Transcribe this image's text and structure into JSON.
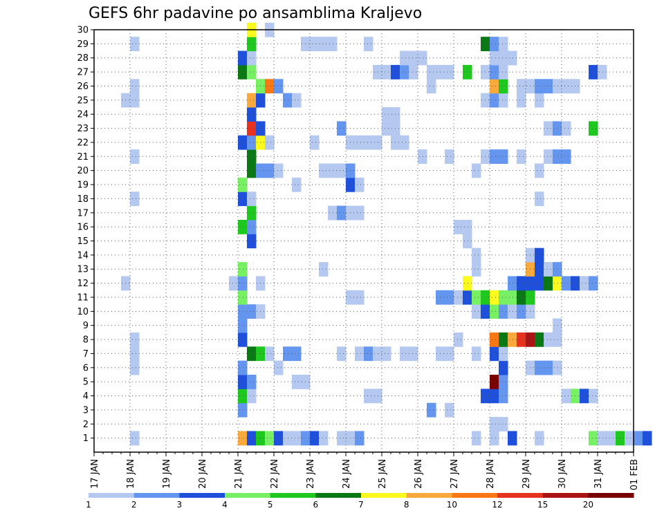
{
  "chart_data": {
    "type": "heatmap",
    "title": "GEFS 6hr padavine po ansamblima Kraljevo",
    "x_ticks": [
      "17 JAN",
      "18 JAN",
      "19 JAN",
      "20 JAN",
      "21 JAN",
      "22 JAN",
      "23 JAN",
      "24 JAN",
      "25 JAN",
      "26 JAN",
      "27 JAN",
      "28 JAN",
      "29 JAN",
      "30 JAN",
      "31 JAN",
      "01 FEB"
    ],
    "y_ticks": [
      "1",
      "2",
      "3",
      "4",
      "5",
      "6",
      "7",
      "8",
      "9",
      "10",
      "11",
      "12",
      "13",
      "14",
      "15",
      "16",
      "17",
      "18",
      "19",
      "20",
      "21",
      "22",
      "23",
      "24",
      "25",
      "26",
      "27",
      "28",
      "29",
      "30"
    ],
    "xlim": [
      "17 JAN",
      "01 FEB"
    ],
    "ylim": [
      0,
      30
    ],
    "x_unit": "day (6-hour steps)",
    "grid": true,
    "legend": {
      "placement": "bottom",
      "labels": [
        "1",
        "2",
        "3",
        "4",
        "5",
        "6",
        "7",
        "8",
        "10",
        "12",
        "15",
        "20"
      ],
      "colors": [
        "#b4c8f0",
        "#6496f0",
        "#1e50dc",
        "#78f064",
        "#1ec81e",
        "#0a7814",
        "#fafa1e",
        "#faaa3c",
        "#fa7814",
        "#e6321e",
        "#aa1414",
        "#780000"
      ]
    },
    "cells": [
      [
        4.0,
        1,
        7
      ],
      [
        4.25,
        1,
        2
      ],
      [
        4.5,
        1,
        4
      ],
      [
        4.75,
        1,
        3
      ],
      [
        5.0,
        1,
        2
      ],
      [
        5.25,
        1,
        0
      ],
      [
        5.5,
        1,
        0
      ],
      [
        5.75,
        1,
        1
      ],
      [
        6.0,
        1,
        2
      ],
      [
        6.25,
        1,
        0
      ],
      [
        6.75,
        1,
        0
      ],
      [
        7.0,
        1,
        0
      ],
      [
        7.25,
        1,
        1
      ],
      [
        10.5,
        1,
        0
      ],
      [
        11.0,
        1,
        0
      ],
      [
        11.5,
        1,
        2
      ],
      [
        12.25,
        1,
        0
      ],
      [
        13.75,
        1,
        3
      ],
      [
        14.0,
        1,
        0
      ],
      [
        14.25,
        1,
        0
      ],
      [
        14.5,
        1,
        4
      ],
      [
        14.75,
        1,
        0
      ],
      [
        15.0,
        1,
        1
      ],
      [
        15.25,
        1,
        2
      ],
      [
        1.0,
        1,
        0
      ],
      [
        11.0,
        2,
        0
      ],
      [
        11.25,
        2,
        0
      ],
      [
        4.0,
        3,
        1
      ],
      [
        9.25,
        3,
        1
      ],
      [
        9.75,
        3,
        0
      ],
      [
        4.0,
        4,
        4
      ],
      [
        4.25,
        4,
        0
      ],
      [
        7.5,
        4,
        0
      ],
      [
        7.75,
        4,
        0
      ],
      [
        10.75,
        4,
        2
      ],
      [
        11.0,
        4,
        2
      ],
      [
        11.25,
        4,
        1
      ],
      [
        13.0,
        4,
        0
      ],
      [
        13.25,
        4,
        3
      ],
      [
        13.5,
        4,
        2
      ],
      [
        13.75,
        4,
        0
      ],
      [
        4.0,
        5,
        2
      ],
      [
        4.25,
        5,
        1
      ],
      [
        5.5,
        5,
        0
      ],
      [
        5.75,
        5,
        0
      ],
      [
        11.0,
        5,
        11
      ],
      [
        11.25,
        5,
        1
      ],
      [
        4.0,
        6,
        1
      ],
      [
        5.0,
        6,
        0
      ],
      [
        11.25,
        6,
        2
      ],
      [
        12.0,
        6,
        0
      ],
      [
        12.25,
        6,
        1
      ],
      [
        12.5,
        6,
        1
      ],
      [
        12.75,
        6,
        0
      ],
      [
        1.0,
        6,
        0
      ],
      [
        4.25,
        7,
        5
      ],
      [
        4.5,
        7,
        4
      ],
      [
        4.75,
        7,
        0
      ],
      [
        5.25,
        7,
        1
      ],
      [
        5.5,
        7,
        1
      ],
      [
        6.75,
        7,
        0
      ],
      [
        7.25,
        7,
        0
      ],
      [
        7.5,
        7,
        1
      ],
      [
        7.75,
        7,
        0
      ],
      [
        8.0,
        7,
        0
      ],
      [
        8.5,
        7,
        0
      ],
      [
        8.75,
        7,
        0
      ],
      [
        9.5,
        7,
        0
      ],
      [
        9.75,
        7,
        0
      ],
      [
        10.5,
        7,
        0
      ],
      [
        11.0,
        7,
        2
      ],
      [
        11.25,
        7,
        0
      ],
      [
        1.0,
        7,
        0
      ],
      [
        4.0,
        8,
        2
      ],
      [
        1.0,
        8,
        0
      ],
      [
        10.0,
        8,
        0
      ],
      [
        11.0,
        8,
        8
      ],
      [
        11.25,
        8,
        5
      ],
      [
        11.5,
        8,
        7
      ],
      [
        11.75,
        8,
        9
      ],
      [
        12.0,
        8,
        10
      ],
      [
        12.25,
        8,
        5
      ],
      [
        12.5,
        8,
        0
      ],
      [
        12.75,
        8,
        0
      ],
      [
        4.0,
        9,
        1
      ],
      [
        12.75,
        9,
        0
      ],
      [
        4.0,
        10,
        1
      ],
      [
        4.25,
        10,
        1
      ],
      [
        4.5,
        10,
        0
      ],
      [
        10.5,
        10,
        0
      ],
      [
        10.75,
        10,
        2
      ],
      [
        11.0,
        10,
        3
      ],
      [
        11.25,
        10,
        1
      ],
      [
        11.5,
        10,
        0
      ],
      [
        11.75,
        10,
        1
      ],
      [
        12.0,
        10,
        0
      ],
      [
        4.0,
        11,
        3
      ],
      [
        7.0,
        11,
        0
      ],
      [
        7.25,
        11,
        0
      ],
      [
        9.5,
        11,
        1
      ],
      [
        9.75,
        11,
        1
      ],
      [
        10.0,
        11,
        0
      ],
      [
        10.25,
        11,
        2
      ],
      [
        10.5,
        11,
        3
      ],
      [
        10.75,
        11,
        4
      ],
      [
        11.0,
        11,
        6
      ],
      [
        11.25,
        11,
        3
      ],
      [
        11.5,
        11,
        3
      ],
      [
        11.75,
        11,
        5
      ],
      [
        12.0,
        11,
        4
      ],
      [
        3.75,
        12,
        0
      ],
      [
        4.0,
        12,
        1
      ],
      [
        4.5,
        12,
        0
      ],
      [
        0.75,
        12,
        0
      ],
      [
        10.25,
        12,
        6
      ],
      [
        11.5,
        12,
        1
      ],
      [
        11.75,
        12,
        2
      ],
      [
        12.0,
        12,
        2
      ],
      [
        12.25,
        12,
        2
      ],
      [
        12.5,
        12,
        5
      ],
      [
        12.75,
        12,
        6
      ],
      [
        13.0,
        12,
        1
      ],
      [
        13.25,
        12,
        2
      ],
      [
        13.5,
        12,
        0
      ],
      [
        13.75,
        12,
        1
      ],
      [
        4.0,
        13,
        3
      ],
      [
        6.25,
        13,
        0
      ],
      [
        10.5,
        13,
        0
      ],
      [
        12.0,
        13,
        7
      ],
      [
        12.25,
        13,
        2
      ],
      [
        12.5,
        13,
        0
      ],
      [
        12.75,
        13,
        1
      ],
      [
        10.5,
        14,
        0
      ],
      [
        12.0,
        14,
        0
      ],
      [
        12.25,
        14,
        2
      ],
      [
        4.25,
        15,
        2
      ],
      [
        10.25,
        15,
        0
      ],
      [
        4.0,
        16,
        4
      ],
      [
        4.25,
        16,
        1
      ],
      [
        10.0,
        16,
        0
      ],
      [
        10.25,
        16,
        0
      ],
      [
        4.25,
        17,
        4
      ],
      [
        6.5,
        17,
        0
      ],
      [
        6.75,
        17,
        1
      ],
      [
        7.0,
        17,
        0
      ],
      [
        7.25,
        17,
        0
      ],
      [
        4.0,
        18,
        2
      ],
      [
        4.25,
        18,
        0
      ],
      [
        1.0,
        18,
        0
      ],
      [
        12.25,
        18,
        0
      ],
      [
        4.0,
        19,
        3
      ],
      [
        5.5,
        19,
        0
      ],
      [
        7.0,
        19,
        2
      ],
      [
        7.25,
        19,
        0
      ],
      [
        4.25,
        20,
        5
      ],
      [
        4.5,
        20,
        1
      ],
      [
        4.75,
        20,
        1
      ],
      [
        5.0,
        20,
        0
      ],
      [
        6.25,
        20,
        0
      ],
      [
        6.5,
        20,
        0
      ],
      [
        6.75,
        20,
        0
      ],
      [
        7.0,
        20,
        1
      ],
      [
        10.5,
        20,
        0
      ],
      [
        12.25,
        20,
        0
      ],
      [
        4.25,
        21,
        5
      ],
      [
        1.0,
        21,
        0
      ],
      [
        9.0,
        21,
        0
      ],
      [
        9.75,
        21,
        0
      ],
      [
        10.75,
        21,
        0
      ],
      [
        11.0,
        21,
        1
      ],
      [
        11.25,
        21,
        1
      ],
      [
        11.75,
        21,
        0
      ],
      [
        12.5,
        21,
        0
      ],
      [
        12.75,
        21,
        1
      ],
      [
        13.0,
        21,
        1
      ],
      [
        4.0,
        22,
        2
      ],
      [
        4.25,
        22,
        1
      ],
      [
        4.5,
        22,
        6
      ],
      [
        4.75,
        22,
        0
      ],
      [
        6.0,
        22,
        0
      ],
      [
        7.0,
        22,
        0
      ],
      [
        7.25,
        22,
        0
      ],
      [
        7.5,
        22,
        0
      ],
      [
        7.75,
        22,
        0
      ],
      [
        8.25,
        22,
        0
      ],
      [
        8.5,
        22,
        0
      ],
      [
        4.25,
        23,
        9
      ],
      [
        4.5,
        23,
        2
      ],
      [
        6.75,
        23,
        1
      ],
      [
        8.0,
        23,
        0
      ],
      [
        8.25,
        23,
        0
      ],
      [
        12.5,
        23,
        0
      ],
      [
        12.75,
        23,
        1
      ],
      [
        13.0,
        23,
        0
      ],
      [
        13.75,
        23,
        4
      ],
      [
        4.25,
        24,
        2
      ],
      [
        8.0,
        24,
        0
      ],
      [
        8.25,
        24,
        0
      ],
      [
        4.25,
        25,
        7
      ],
      [
        4.5,
        25,
        2
      ],
      [
        0.75,
        25,
        0
      ],
      [
        1.0,
        25,
        0
      ],
      [
        5.25,
        25,
        1
      ],
      [
        5.5,
        25,
        0
      ],
      [
        10.75,
        25,
        0
      ],
      [
        11.0,
        25,
        1
      ],
      [
        11.25,
        25,
        0
      ],
      [
        11.75,
        25,
        0
      ],
      [
        12.25,
        25,
        0
      ],
      [
        4.5,
        26,
        3
      ],
      [
        4.75,
        26,
        8
      ],
      [
        5.0,
        26,
        1
      ],
      [
        1.0,
        26,
        0
      ],
      [
        9.25,
        26,
        0
      ],
      [
        11.0,
        26,
        7
      ],
      [
        11.25,
        26,
        4
      ],
      [
        11.75,
        26,
        0
      ],
      [
        12.0,
        26,
        0
      ],
      [
        12.25,
        26,
        1
      ],
      [
        12.5,
        26,
        1
      ],
      [
        12.75,
        26,
        0
      ],
      [
        13.0,
        26,
        0
      ],
      [
        13.25,
        26,
        0
      ],
      [
        4.0,
        27,
        5
      ],
      [
        4.25,
        27,
        3
      ],
      [
        7.75,
        27,
        0
      ],
      [
        8.0,
        27,
        0
      ],
      [
        8.25,
        27,
        2
      ],
      [
        8.5,
        27,
        1
      ],
      [
        8.75,
        27,
        0
      ],
      [
        9.25,
        27,
        0
      ],
      [
        9.5,
        27,
        0
      ],
      [
        9.75,
        27,
        0
      ],
      [
        10.25,
        27,
        4
      ],
      [
        10.75,
        27,
        0
      ],
      [
        11.0,
        27,
        1
      ],
      [
        11.25,
        27,
        0
      ],
      [
        13.75,
        27,
        2
      ],
      [
        14.0,
        27,
        0
      ],
      [
        4.0,
        28,
        2
      ],
      [
        4.25,
        28,
        0
      ],
      [
        8.5,
        28,
        0
      ],
      [
        8.75,
        28,
        0
      ],
      [
        9.0,
        28,
        0
      ],
      [
        11.0,
        28,
        0
      ],
      [
        11.25,
        28,
        0
      ],
      [
        11.5,
        28,
        0
      ],
      [
        4.25,
        29,
        4
      ],
      [
        1.0,
        29,
        0
      ],
      [
        5.75,
        29,
        0
      ],
      [
        6.0,
        29,
        0
      ],
      [
        6.25,
        29,
        0
      ],
      [
        6.5,
        29,
        0
      ],
      [
        7.5,
        29,
        0
      ],
      [
        10.75,
        29,
        5
      ],
      [
        11.0,
        29,
        1
      ],
      [
        11.25,
        29,
        0
      ],
      [
        4.25,
        30,
        6
      ],
      [
        4.75,
        30,
        0
      ]
    ]
  }
}
